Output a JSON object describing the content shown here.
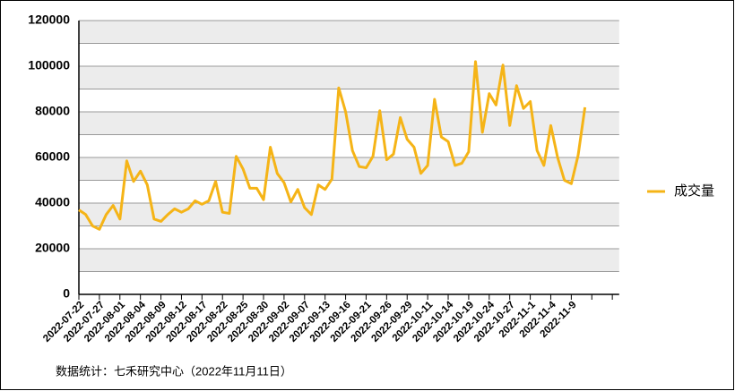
{
  "chart_data": {
    "type": "line",
    "categories": [
      "2022-07-22",
      null,
      null,
      "2022-07-27",
      null,
      null,
      "2022-08-01",
      null,
      null,
      "2022-08-04",
      null,
      null,
      "2022-08-09",
      null,
      null,
      "2022-08-12",
      null,
      null,
      "2022-08-17",
      null,
      null,
      "2022-08-22",
      null,
      null,
      "2022-08-25",
      null,
      null,
      "2022-08-30",
      null,
      null,
      "2022-09-02",
      null,
      null,
      "2022-09-07",
      null,
      null,
      "2022-09-13",
      null,
      null,
      "2022-09-16",
      null,
      null,
      "2022-09-21",
      null,
      null,
      "2022-09-26",
      null,
      null,
      "2022-09-29",
      null,
      null,
      "2022-10-11",
      null,
      null,
      "2022-10-14",
      null,
      null,
      "2022-10-19",
      null,
      null,
      "2022-10-24",
      null,
      null,
      "2022-10-27",
      null,
      null,
      "2022-11-1",
      null,
      null,
      "2022-11-4",
      null,
      null,
      "2022-11-9",
      null,
      null
    ],
    "series": [
      {
        "name": "成交量",
        "color": "#f5b417",
        "values": [
          37000,
          35000,
          30000,
          28500,
          35000,
          39000,
          33000,
          58500,
          49500,
          54000,
          48000,
          33000,
          32000,
          35000,
          37500,
          36000,
          37500,
          41000,
          39500,
          41000,
          49500,
          36000,
          35500,
          60500,
          55000,
          46500,
          46500,
          41500,
          64500,
          53000,
          49000,
          40500,
          46000,
          38000,
          35000,
          48000,
          46000,
          50500,
          90500,
          80000,
          63000,
          56000,
          55500,
          60500,
          80500,
          59000,
          61500,
          77500,
          68000,
          64500,
          53000,
          56500,
          85500,
          69000,
          67000,
          56500,
          57500,
          62500,
          102000,
          71000,
          88000,
          83000,
          100500,
          74000,
          91500,
          81500,
          84500,
          63000,
          56500,
          74000,
          60000,
          50000,
          48500,
          61000,
          82000
        ]
      }
    ],
    "ylim": [
      0,
      120000
    ],
    "yticks": [
      0,
      20000,
      40000,
      60000,
      80000,
      100000,
      120000
    ],
    "grid": true,
    "legend": "right",
    "source": "数据统计：七禾研究中心（2022年11月11日）"
  }
}
